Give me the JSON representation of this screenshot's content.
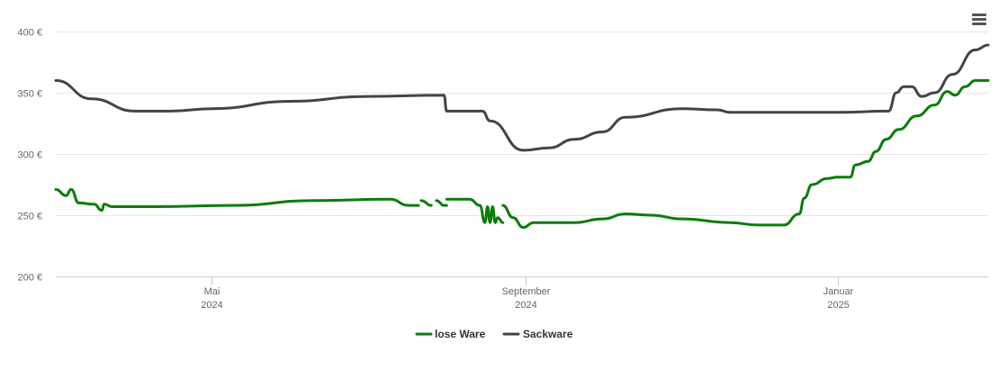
{
  "chart_data": {
    "type": "line",
    "y_ticks": [
      {
        "value": 400,
        "label": "400 €"
      },
      {
        "value": 350,
        "label": "350 €"
      },
      {
        "value": 300,
        "label": "300 €"
      },
      {
        "value": 250,
        "label": "250 €"
      },
      {
        "value": 200,
        "label": "200 €"
      }
    ],
    "ylim": [
      200,
      400
    ],
    "xlim": [
      "2024-03-01",
      "2025-03-01"
    ],
    "x_ticks": [
      {
        "date": "2024-05-01",
        "month": "Mai",
        "year": "2024"
      },
      {
        "date": "2024-09-01",
        "month": "September",
        "year": "2024"
      },
      {
        "date": "2025-01-01",
        "month": "Januar",
        "year": "2025"
      }
    ],
    "grid": true,
    "legend_position": "bottom-center",
    "series": [
      {
        "name": "lose Ware",
        "color": "#0a7d0a",
        "segments": [
          [
            [
              "2024-03-01",
              271
            ],
            [
              "2024-03-05",
              266
            ],
            [
              "2024-03-07",
              271
            ],
            [
              "2024-03-10",
              260
            ],
            [
              "2024-03-16",
              259
            ],
            [
              "2024-03-19",
              254
            ],
            [
              "2024-03-20",
              259
            ],
            [
              "2024-03-23",
              257
            ],
            [
              "2024-04-10",
              257
            ],
            [
              "2024-05-10",
              258
            ],
            [
              "2024-06-10",
              262
            ],
            [
              "2024-07-10",
              263
            ],
            [
              "2024-07-17",
              258
            ],
            [
              "2024-07-21",
              258
            ]
          ],
          [
            [
              "2024-07-22",
              262
            ],
            [
              "2024-07-26",
              258
            ]
          ],
          [
            [
              "2024-07-28",
              262
            ],
            [
              "2024-07-31",
              258
            ],
            [
              "2024-08-01",
              258
            ]
          ],
          [
            [
              "2024-08-01",
              263
            ],
            [
              "2024-08-10",
              263
            ],
            [
              "2024-08-14",
              258
            ],
            [
              "2024-08-16",
              244
            ],
            [
              "2024-08-17",
              257
            ],
            [
              "2024-08-18",
              244
            ],
            [
              "2024-08-19",
              257
            ],
            [
              "2024-08-20",
              244
            ],
            [
              "2024-08-21",
              248
            ],
            [
              "2024-08-23",
              244
            ]
          ],
          [
            [
              "2024-08-23",
              258
            ],
            [
              "2024-08-27",
              248
            ],
            [
              "2024-08-31",
              240
            ],
            [
              "2024-09-04",
              244
            ],
            [
              "2024-09-20",
              244
            ],
            [
              "2024-10-01",
              247
            ],
            [
              "2024-10-10",
              251
            ],
            [
              "2024-10-20",
              250
            ],
            [
              "2024-11-01",
              247
            ],
            [
              "2024-11-20",
              244
            ],
            [
              "2024-12-01",
              242
            ],
            [
              "2024-12-11",
              242
            ],
            [
              "2024-12-17",
              251
            ],
            [
              "2024-12-19",
              264
            ],
            [
              "2024-12-22",
              275
            ],
            [
              "2024-12-28",
              280
            ],
            [
              "2025-01-01",
              281
            ],
            [
              "2025-01-06",
              281
            ],
            [
              "2025-01-08",
              291
            ],
            [
              "2025-01-13",
              294
            ],
            [
              "2025-01-16",
              302
            ],
            [
              "2025-01-20",
              312
            ],
            [
              "2025-01-25",
              320
            ],
            [
              "2025-02-01",
              331
            ],
            [
              "2025-02-08",
              340
            ],
            [
              "2025-02-13",
              351
            ],
            [
              "2025-02-16",
              348
            ],
            [
              "2025-02-20",
              355
            ],
            [
              "2025-02-24",
              360
            ],
            [
              "2025-03-01",
              360
            ]
          ]
        ]
      },
      {
        "name": "Sackware",
        "color": "#444444",
        "segments": [
          [
            [
              "2024-03-01",
              360
            ],
            [
              "2024-03-15",
              345
            ],
            [
              "2024-04-01",
              335
            ],
            [
              "2024-04-15",
              335
            ],
            [
              "2024-05-01",
              337
            ],
            [
              "2024-06-01",
              343
            ],
            [
              "2024-07-01",
              347
            ],
            [
              "2024-07-31",
              348
            ],
            [
              "2024-08-01",
              335
            ],
            [
              "2024-08-15",
              335
            ],
            [
              "2024-08-18",
              327
            ],
            [
              "2024-08-31",
              303
            ],
            [
              "2024-09-10",
              305
            ],
            [
              "2024-09-20",
              312
            ],
            [
              "2024-10-01",
              318
            ],
            [
              "2024-10-10",
              330
            ],
            [
              "2024-11-01",
              337
            ],
            [
              "2024-11-15",
              336
            ],
            [
              "2024-11-20",
              334
            ],
            [
              "2025-01-01",
              334
            ],
            [
              "2025-01-21",
              335
            ],
            [
              "2025-01-24",
              350
            ],
            [
              "2025-01-27",
              355
            ],
            [
              "2025-01-30",
              355
            ],
            [
              "2025-02-03",
              347
            ],
            [
              "2025-02-08",
              350
            ],
            [
              "2025-02-15",
              365
            ],
            [
              "2025-02-24",
              385
            ],
            [
              "2025-03-01",
              389
            ]
          ]
        ]
      }
    ]
  }
}
